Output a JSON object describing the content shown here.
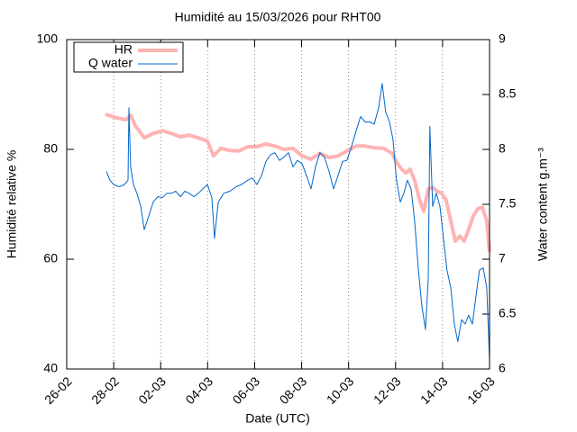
{
  "chart_data": {
    "type": "line",
    "title": "Humidité au 15/03/2026 pour RHT00",
    "x_label": "Date (UTC)",
    "y_label": "Humidité relative %",
    "y2_label": "Water content g.m⁻³",
    "xlim": [
      0,
      18
    ],
    "xticks": [
      {
        "value": 0,
        "label": "26-02"
      },
      {
        "value": 2,
        "label": "28-02"
      },
      {
        "value": 4,
        "label": "02-03"
      },
      {
        "value": 6,
        "label": "04-03"
      },
      {
        "value": 8,
        "label": "06-03"
      },
      {
        "value": 10,
        "label": "08-03"
      },
      {
        "value": 12,
        "label": "10-03"
      },
      {
        "value": 14,
        "label": "12-03"
      },
      {
        "value": 16,
        "label": "14-03"
      },
      {
        "value": 18,
        "label": "16-03"
      }
    ],
    "ylim": [
      40,
      100
    ],
    "yticks": [
      40,
      60,
      80,
      100
    ],
    "y2lim": [
      6,
      9
    ],
    "y2ticks": [
      6,
      6.5,
      7,
      7.5,
      8,
      8.5,
      9
    ],
    "grid": "x",
    "legend": "top-left",
    "series": [
      {
        "name": "HR",
        "color": "#ffb3b3",
        "x": [
          1.65,
          2.15,
          2.53,
          2.72,
          2.92,
          3.3,
          3.68,
          4.07,
          4.45,
          4.84,
          5.22,
          5.6,
          5.99,
          6.25,
          6.56,
          6.95,
          7.33,
          7.71,
          8.1,
          8.48,
          8.86,
          9.25,
          9.63,
          10.02,
          10.4,
          10.78,
          11.17,
          11.55,
          11.93,
          12.32,
          12.7,
          13.09,
          13.47,
          13.85,
          14.04,
          14.24,
          14.43,
          14.62,
          14.81,
          15.0,
          15.2,
          15.39,
          15.58,
          15.77,
          15.96,
          16.15,
          16.35,
          16.54,
          16.73,
          16.92,
          17.11,
          17.31,
          17.5,
          17.69,
          17.88,
          18.0
        ],
        "values": [
          86.4,
          85.7,
          85.4,
          86.2,
          84.3,
          82.1,
          82.9,
          83.4,
          82.9,
          82.3,
          82.6,
          82.1,
          81.5,
          78.8,
          80.2,
          79.8,
          79.7,
          80.5,
          80.5,
          81.0,
          80.6,
          80.0,
          80.2,
          78.8,
          78.2,
          79.3,
          78.5,
          78.8,
          79.7,
          80.6,
          80.6,
          80.3,
          80.2,
          79.3,
          77.7,
          76.5,
          75.7,
          76.4,
          74.4,
          71.1,
          68.7,
          72.8,
          73.1,
          72.4,
          72.0,
          70.8,
          67.0,
          63.3,
          64.2,
          63.3,
          65.4,
          67.9,
          69.2,
          69.5,
          67.0,
          61.3
        ]
      },
      {
        "name": "Q water",
        "color": "#0066cc",
        "axis": "y2",
        "x": [
          1.69,
          1.84,
          2.0,
          2.23,
          2.46,
          2.61,
          2.65,
          2.72,
          2.84,
          2.99,
          3.15,
          3.3,
          3.49,
          3.68,
          3.88,
          4.07,
          4.26,
          4.45,
          4.64,
          4.84,
          5.03,
          5.22,
          5.41,
          5.6,
          5.79,
          5.99,
          6.18,
          6.29,
          6.45,
          6.68,
          6.95,
          7.21,
          7.44,
          7.71,
          7.9,
          8.1,
          8.29,
          8.48,
          8.67,
          8.86,
          9.06,
          9.25,
          9.44,
          9.63,
          9.82,
          10.02,
          10.21,
          10.4,
          10.59,
          10.78,
          10.97,
          11.17,
          11.36,
          11.55,
          11.74,
          11.93,
          12.13,
          12.32,
          12.51,
          12.7,
          12.89,
          13.09,
          13.28,
          13.43,
          13.58,
          13.74,
          13.89,
          14.04,
          14.2,
          14.35,
          14.5,
          14.66,
          14.81,
          14.97,
          15.12,
          15.27,
          15.39,
          15.46,
          15.58,
          15.73,
          15.89,
          16.04,
          16.19,
          16.35,
          16.5,
          16.65,
          16.81,
          16.96,
          17.11,
          17.27,
          17.42,
          17.57,
          17.73,
          17.88,
          18.0
        ],
        "values": [
          7.8,
          7.72,
          7.68,
          7.66,
          7.68,
          7.72,
          8.38,
          7.84,
          7.68,
          7.6,
          7.48,
          7.27,
          7.39,
          7.52,
          7.57,
          7.56,
          7.6,
          7.6,
          7.62,
          7.57,
          7.62,
          7.6,
          7.57,
          7.6,
          7.64,
          7.68,
          7.56,
          7.19,
          7.52,
          7.6,
          7.62,
          7.66,
          7.68,
          7.72,
          7.74,
          7.68,
          7.76,
          7.89,
          7.95,
          7.97,
          7.9,
          7.93,
          7.97,
          7.84,
          7.9,
          7.87,
          7.76,
          7.64,
          7.84,
          7.97,
          7.93,
          7.8,
          7.64,
          7.76,
          7.89,
          7.9,
          8.03,
          8.17,
          8.3,
          8.25,
          8.25,
          8.23,
          8.38,
          8.6,
          8.34,
          8.25,
          8.09,
          7.72,
          7.52,
          7.6,
          7.72,
          7.64,
          7.35,
          6.9,
          6.57,
          6.36,
          6.82,
          8.21,
          7.48,
          7.6,
          7.48,
          7.19,
          6.9,
          6.74,
          6.41,
          6.25,
          6.45,
          6.41,
          6.49,
          6.41,
          6.66,
          6.9,
          6.92,
          6.74,
          6.08
        ]
      }
    ]
  }
}
